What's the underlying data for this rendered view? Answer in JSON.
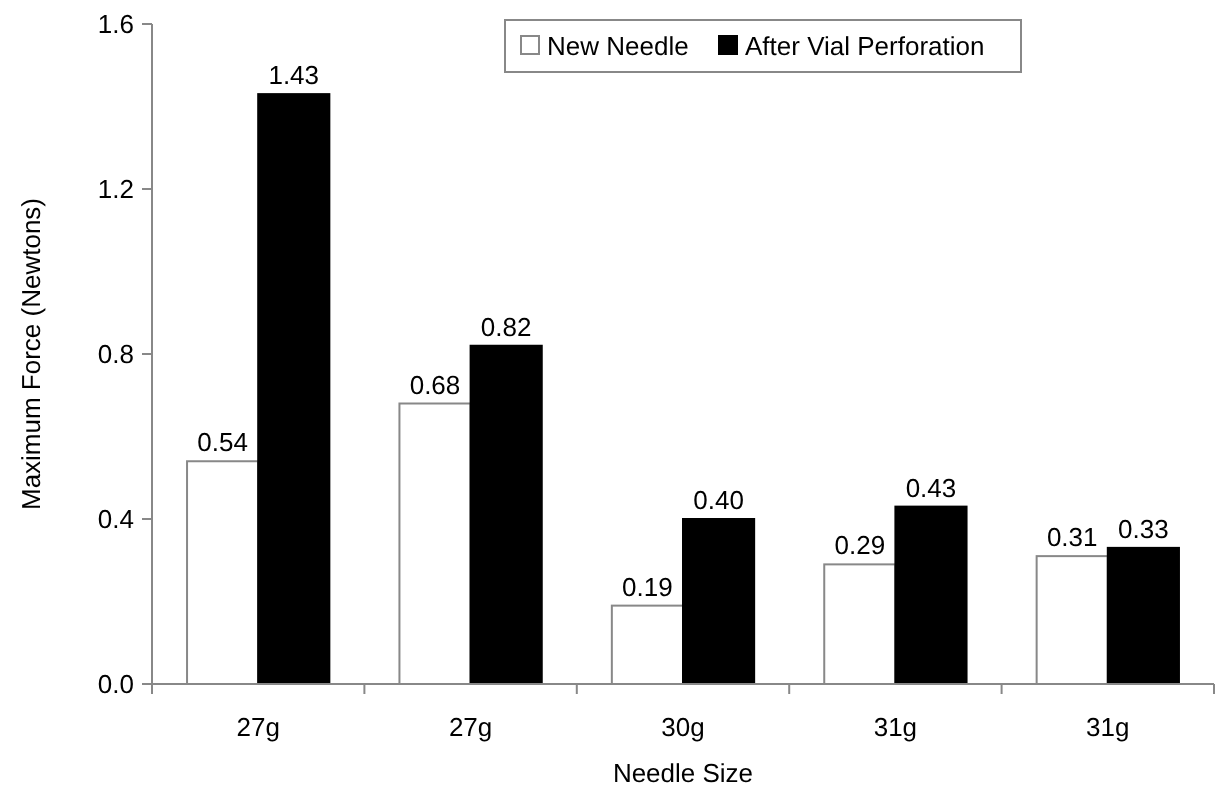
{
  "chart_data": {
    "type": "bar",
    "xlabel": "Needle Size",
    "ylabel": "Maximum Force (Newtons)",
    "categories": [
      "27g",
      "27g",
      "30g",
      "31g",
      "31g"
    ],
    "series": [
      {
        "name": "New Needle",
        "color": "#ffffff",
        "values": [
          0.54,
          0.68,
          0.19,
          0.29,
          0.31
        ],
        "value_labels": [
          "0.54",
          "0.68",
          "0.19",
          "0.29",
          "0.31"
        ]
      },
      {
        "name": "After Vial Perforation",
        "color": "#000000",
        "values": [
          1.43,
          0.82,
          0.4,
          0.43,
          0.33
        ],
        "value_labels": [
          "1.43",
          "0.82",
          "0.40",
          "0.43",
          "0.33"
        ]
      }
    ],
    "ylim": [
      0,
      1.6
    ],
    "yticks": [
      {
        "value": 0,
        "label": "0.0"
      },
      {
        "value": 0.4,
        "label": "0.4"
      },
      {
        "value": 0.8,
        "label": "0.8"
      },
      {
        "value": 1.2,
        "label": "1.2"
      },
      {
        "value": 1.6,
        "label": "1.6"
      }
    ],
    "grid": false,
    "legend": "top"
  }
}
